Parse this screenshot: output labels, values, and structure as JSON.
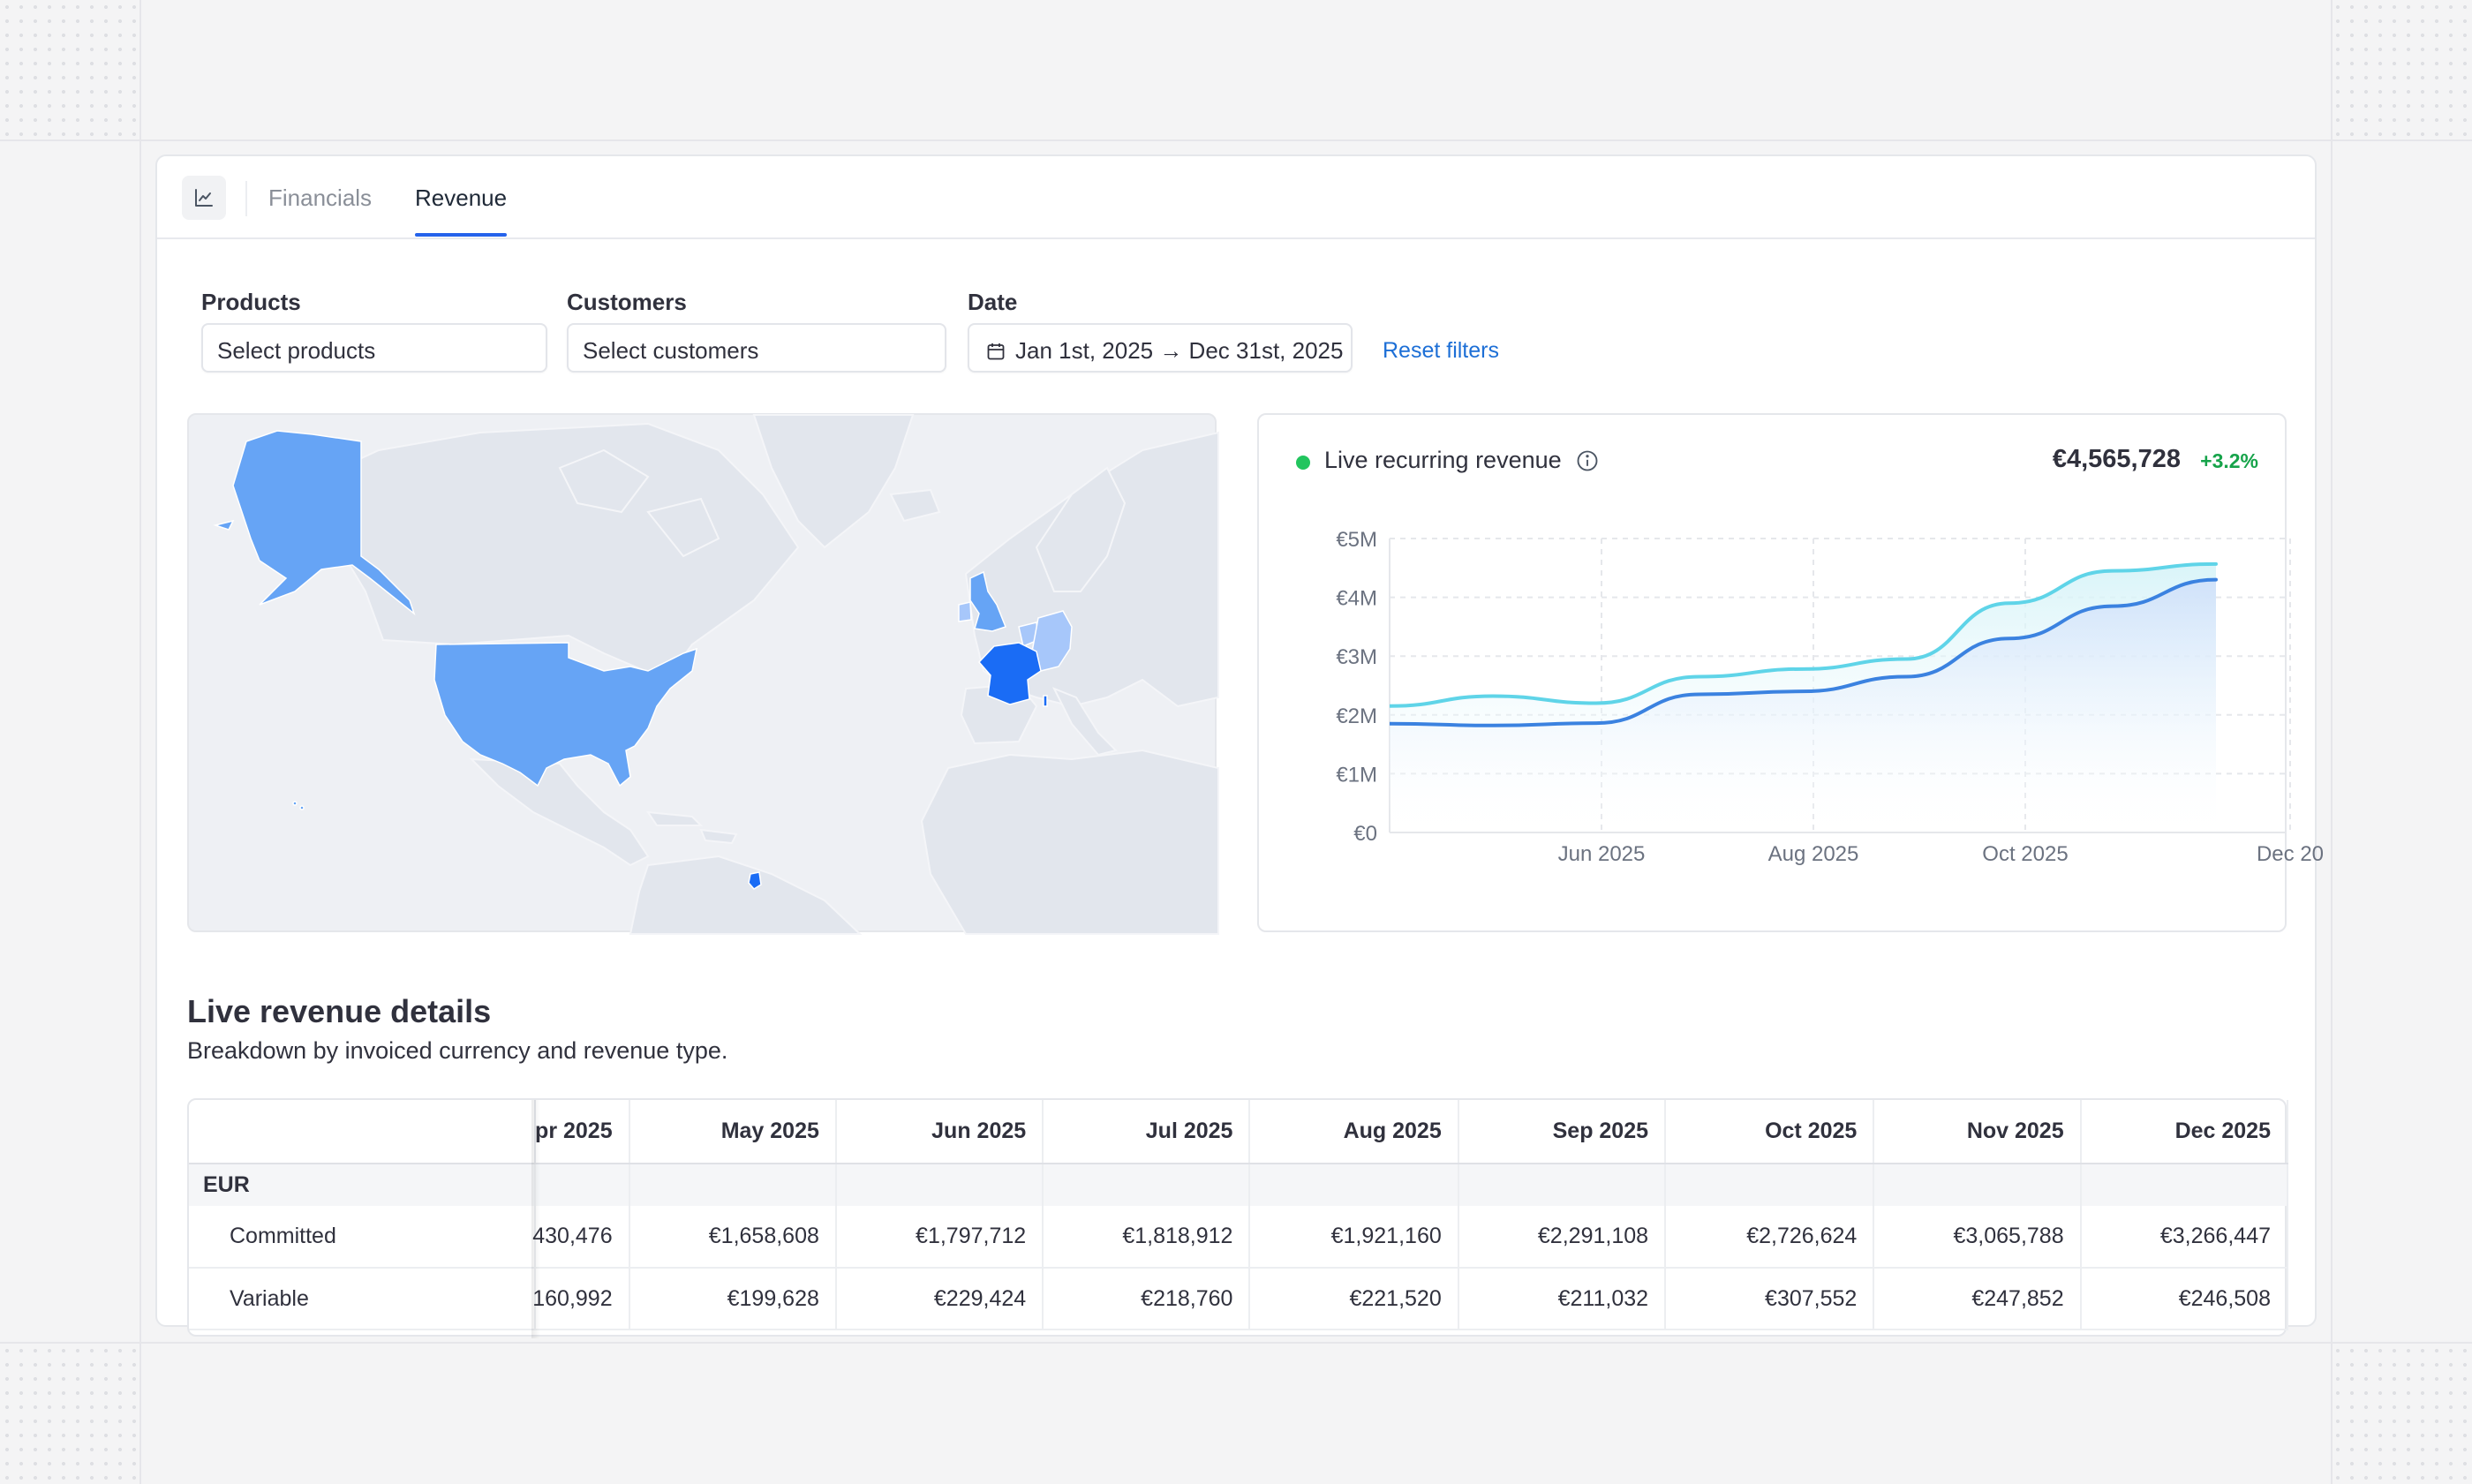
{
  "tabs": [
    {
      "label": "Financials",
      "active": false
    },
    {
      "label": "Revenue",
      "active": true
    }
  ],
  "filters": {
    "products": {
      "label": "Products",
      "placeholder": "Select products"
    },
    "customers": {
      "label": "Customers",
      "placeholder": "Select customers"
    },
    "date": {
      "label": "Date",
      "value": "Jan 1st, 2025 → Dec 31st, 2025"
    },
    "reset_label": "Reset filters"
  },
  "map": {
    "highlighted_countries": [
      "United States",
      "Alaska (US)",
      "United Kingdom",
      "France",
      "Germany",
      "Belgium",
      "Netherlands",
      "French Guiana"
    ],
    "colors": {
      "land": "#e2e6ed",
      "water": "#eef0f4",
      "low": "#a7c7fa",
      "mid": "#66a4f5",
      "high": "#1a6cf5"
    }
  },
  "kpi": {
    "label": "Live recurring revenue",
    "value": "€4,565,728",
    "change": "+3.2%",
    "status_color": "#22c55e"
  },
  "chart_data": {
    "type": "line",
    "x": [
      "Apr 2025",
      "May 2025",
      "Jun 2025",
      "Jul 2025",
      "Aug 2025",
      "Sep 2025",
      "Oct 2025",
      "Nov 2025",
      "Dec 2025"
    ],
    "x_ticks": [
      "Jun 2025",
      "Aug 2025",
      "Oct 2025",
      "Dec 20"
    ],
    "y_ticks": [
      "€5M",
      "€4M",
      "€3M",
      "€2M",
      "€1M",
      "€0"
    ],
    "ylim": [
      0,
      5000000
    ],
    "series": [
      {
        "color": "#5fd4e8",
        "values": [
          2150000,
          2320000,
          2200000,
          2650000,
          2780000,
          2950000,
          3900000,
          4450000,
          4565728
        ]
      },
      {
        "color": "#3b82e0",
        "values": [
          1850000,
          1820000,
          1860000,
          2350000,
          2400000,
          2650000,
          3300000,
          3850000,
          4300000
        ]
      }
    ],
    "colors": {
      "grid": "#e5e7eb",
      "area": "#dbe8fb"
    }
  },
  "details": {
    "title": "Live revenue details",
    "subtitle": "Breakdown by invoiced currency and revenue type.",
    "columns": [
      "pr 2025",
      "May 2025",
      "Jun 2025",
      "Jul 2025",
      "Aug 2025",
      "Sep 2025",
      "Oct 2025",
      "Nov 2025",
      "Dec 2025"
    ],
    "group": "EUR",
    "rows": [
      {
        "label": "Committed",
        "values": [
          "430,476",
          "€1,658,608",
          "€1,797,712",
          "€1,818,912",
          "€1,921,160",
          "€2,291,108",
          "€2,726,624",
          "€3,065,788",
          "€3,266,447"
        ]
      },
      {
        "label": "Variable",
        "values": [
          "160,992",
          "€199,628",
          "€229,424",
          "€218,760",
          "€221,520",
          "€211,032",
          "€307,552",
          "€247,852",
          "€246,508"
        ]
      }
    ]
  }
}
